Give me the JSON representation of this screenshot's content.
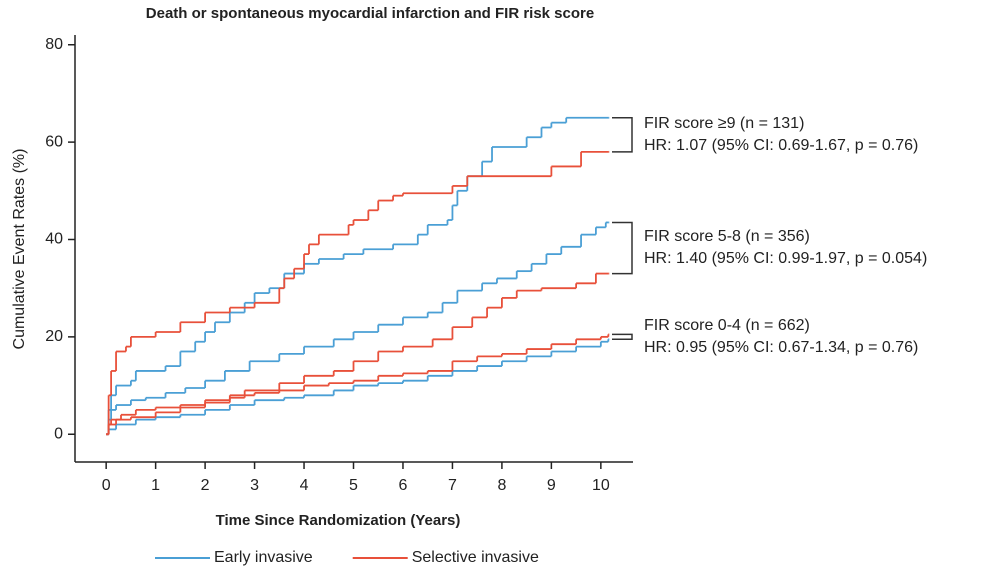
{
  "chart_data": {
    "type": "step",
    "title": "Death or spontaneous myocardial infarction and FIR risk score",
    "x_label": "Time Since Randomization (Years)",
    "y_label": "Cumulative Event Rates (%)",
    "xlim": [
      -0.63,
      10.65
    ],
    "xticks": [
      0,
      1,
      2,
      3,
      4,
      5,
      6,
      7,
      8,
      9,
      10
    ],
    "ylim": [
      -5.7,
      82
    ],
    "yticks": [
      0,
      20,
      40,
      60,
      80
    ],
    "series": [
      {
        "name": "Early invasive",
        "color": "#4a9fd5",
        "curves": [
          {
            "x": [
              0,
              0.05,
              0.1,
              0.2,
              0.5,
              0.6,
              1.2,
              1.5,
              1.8,
              2.0,
              2.2,
              2.5,
              2.8,
              3.0,
              3.3,
              3.6,
              4.0,
              4.3,
              4.8,
              5.2,
              5.8,
              6.3,
              6.5,
              6.9,
              7.0,
              7.1,
              7.3,
              7.6,
              7.8,
              8.5,
              8.8,
              9.0,
              9.3,
              10.15
            ],
            "values": [
              0,
              5,
              8,
              10,
              11,
              13,
              14,
              17,
              19,
              21,
              23,
              25,
              27,
              29,
              30,
              33,
              35,
              36,
              37,
              38,
              39,
              41,
              43,
              44,
              47,
              50,
              53,
              56,
              59,
              61,
              63,
              64,
              65,
              65
            ]
          },
          {
            "x": [
              0,
              0.05,
              0.1,
              0.2,
              0.5,
              0.8,
              1.2,
              1.6,
              2.0,
              2.4,
              2.9,
              3.5,
              4.0,
              4.6,
              5.0,
              5.5,
              6.0,
              6.5,
              6.8,
              7.1,
              7.6,
              7.9,
              8.3,
              8.6,
              8.9,
              9.2,
              9.6,
              9.9,
              10.1,
              10.15
            ],
            "values": [
              0,
              3,
              5,
              6,
              7,
              7.5,
              8.5,
              9.5,
              11,
              13,
              15,
              16.5,
              18,
              19.5,
              21,
              22.5,
              24,
              25,
              27,
              29.5,
              31,
              32,
              33.5,
              35,
              37,
              38.5,
              41,
              42.5,
              43.5,
              43.5
            ]
          },
          {
            "x": [
              0,
              0.05,
              0.2,
              0.6,
              1.0,
              1.5,
              2.0,
              2.5,
              3.0,
              3.6,
              4.0,
              4.6,
              5.0,
              5.5,
              6.0,
              6.5,
              7.0,
              7.5,
              8.0,
              8.5,
              9.0,
              9.5,
              10.0,
              10.15
            ],
            "values": [
              0,
              1,
              2,
              3,
              3.5,
              4,
              5,
              6,
              7,
              7.5,
              8,
              9,
              10,
              10.5,
              11,
              12,
              13,
              14,
              15,
              16,
              17,
              18,
              19,
              19.5
            ]
          }
        ]
      },
      {
        "name": "Selective invasive",
        "color": "#e8503a",
        "curves": [
          {
            "x": [
              0,
              0.05,
              0.1,
              0.2,
              0.4,
              0.5,
              1.0,
              1.5,
              2.0,
              2.5,
              3.0,
              3.5,
              3.6,
              3.8,
              4.0,
              4.1,
              4.3,
              4.9,
              5.0,
              5.3,
              5.5,
              5.8,
              6.0,
              7.0,
              7.3,
              9.0,
              9.6,
              10.15
            ],
            "values": [
              0,
              8,
              13,
              17,
              18,
              20,
              21,
              23,
              25,
              26,
              27,
              30,
              32,
              34,
              37,
              39,
              41,
              43,
              44,
              46,
              48,
              49,
              49.5,
              51,
              53,
              55,
              58,
              58
            ]
          },
          {
            "x": [
              0,
              0.05,
              0.2,
              0.5,
              1.0,
              1.5,
              2.0,
              2.5,
              2.8,
              3.5,
              4.0,
              4.6,
              5.0,
              5.5,
              6.0,
              6.6,
              7.0,
              7.4,
              7.7,
              8.0,
              8.3,
              8.8,
              9.5,
              9.9,
              10.15
            ],
            "values": [
              0,
              2,
              3,
              3.5,
              4.5,
              5.5,
              6.5,
              7.5,
              9,
              10.5,
              12,
              13,
              15,
              17,
              18,
              19.5,
              22,
              24,
              26,
              28,
              29.5,
              30,
              31,
              33,
              33
            ]
          },
          {
            "x": [
              0,
              0.05,
              0.1,
              0.3,
              0.6,
              1.0,
              1.5,
              2.0,
              2.5,
              3.0,
              3.5,
              4.0,
              4.5,
              5.0,
              5.5,
              6.0,
              6.5,
              7.0,
              7.5,
              8.0,
              8.5,
              9.0,
              9.5,
              10.0,
              10.15
            ],
            "values": [
              0,
              2,
              3,
              4,
              5,
              5.5,
              6,
              7,
              8,
              8.5,
              9,
              10,
              10.5,
              11,
              12,
              12.5,
              13,
              15,
              16,
              16.5,
              17.5,
              18.5,
              19.5,
              20,
              20.5
            ]
          }
        ]
      }
    ],
    "annotations": [
      {
        "label": "FIR score ≥9 (n = 131)",
        "hr": "HR: 1.07 (95% CI: 0.69-1.67, p = 0.76)"
      },
      {
        "label": "FIR score 5-8 (n = 356)",
        "hr": "HR: 1.40 (95% CI: 0.99-1.97, p = 0.054)"
      },
      {
        "label": "FIR score 0-4 (n = 662)",
        "hr": "HR: 0.95 (95% CI: 0.67-1.34, p = 0.76)"
      }
    ]
  }
}
